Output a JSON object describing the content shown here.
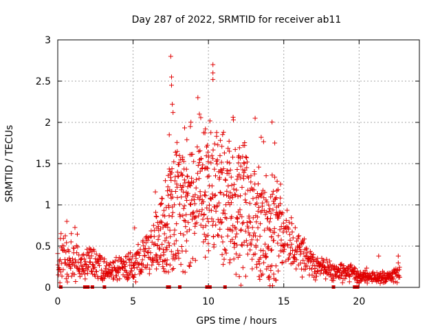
{
  "chart_data": {
    "type": "scatter",
    "title": "Day 287 of 2022, SRMTID for receiver ab11",
    "xlabel": "GPS time / hours",
    "ylabel": "SRMTID / TECUs",
    "xlim": [
      0,
      24
    ],
    "ylim": [
      0,
      3
    ],
    "xticks": [
      0,
      5,
      10,
      15,
      20
    ],
    "yticks": [
      0,
      0.5,
      1,
      1.5,
      2,
      2.5,
      3
    ],
    "grid": true,
    "marker": "+",
    "color": "#e00000",
    "envelope": [
      [
        0.0,
        0.3,
        0.35
      ],
      [
        0.5,
        0.38,
        0.3
      ],
      [
        1.0,
        0.36,
        0.25
      ],
      [
        1.5,
        0.25,
        0.12
      ],
      [
        2.0,
        0.32,
        0.18
      ],
      [
        2.5,
        0.28,
        0.18
      ],
      [
        3.0,
        0.24,
        0.14
      ],
      [
        3.5,
        0.22,
        0.12
      ],
      [
        4.0,
        0.24,
        0.16
      ],
      [
        4.5,
        0.24,
        0.18
      ],
      [
        5.0,
        0.28,
        0.18
      ],
      [
        5.5,
        0.34,
        0.2
      ],
      [
        6.0,
        0.42,
        0.24
      ],
      [
        6.5,
        0.52,
        0.32
      ],
      [
        7.0,
        0.68,
        0.45
      ],
      [
        7.5,
        0.9,
        0.62
      ],
      [
        8.0,
        1.0,
        0.7
      ],
      [
        8.5,
        1.0,
        0.7
      ],
      [
        9.0,
        1.1,
        0.7
      ],
      [
        9.5,
        1.25,
        0.7
      ],
      [
        10.0,
        1.15,
        0.75
      ],
      [
        10.5,
        1.05,
        0.75
      ],
      [
        11.0,
        0.95,
        0.7
      ],
      [
        11.5,
        0.95,
        0.7
      ],
      [
        12.0,
        0.9,
        0.7
      ],
      [
        12.5,
        0.9,
        0.7
      ],
      [
        13.0,
        0.85,
        0.6
      ],
      [
        13.5,
        0.8,
        0.6
      ],
      [
        14.0,
        0.6,
        0.55
      ],
      [
        14.5,
        0.85,
        0.7
      ],
      [
        15.0,
        0.6,
        0.3
      ],
      [
        15.5,
        0.58,
        0.3
      ],
      [
        16.0,
        0.45,
        0.25
      ],
      [
        16.5,
        0.35,
        0.2
      ],
      [
        17.0,
        0.28,
        0.15
      ],
      [
        17.5,
        0.24,
        0.12
      ],
      [
        18.0,
        0.2,
        0.12
      ],
      [
        18.5,
        0.18,
        0.1
      ],
      [
        19.0,
        0.18,
        0.1
      ],
      [
        19.5,
        0.2,
        0.12
      ],
      [
        20.0,
        0.12,
        0.06
      ],
      [
        20.5,
        0.12,
        0.06
      ],
      [
        21.0,
        0.12,
        0.06
      ],
      [
        21.5,
        0.12,
        0.06
      ],
      [
        22.0,
        0.12,
        0.06
      ],
      [
        22.5,
        0.18,
        0.1
      ]
    ],
    "sample_interval_hours": 0.02,
    "x_range": [
      0.0,
      22.7
    ],
    "peaks": [
      {
        "x": 7.5,
        "y": 2.8
      },
      {
        "x": 7.55,
        "y": 2.55
      },
      {
        "x": 7.55,
        "y": 2.45
      },
      {
        "x": 7.6,
        "y": 2.22
      },
      {
        "x": 7.65,
        "y": 2.12
      },
      {
        "x": 10.3,
        "y": 2.7
      },
      {
        "x": 10.3,
        "y": 2.6
      },
      {
        "x": 10.3,
        "y": 2.52
      },
      {
        "x": 9.3,
        "y": 2.3
      },
      {
        "x": 9.4,
        "y": 2.1
      },
      {
        "x": 13.1,
        "y": 2.05
      },
      {
        "x": 8.8,
        "y": 1.95
      },
      {
        "x": 9.8,
        "y": 1.92
      },
      {
        "x": 11.0,
        "y": 1.88
      },
      {
        "x": 13.5,
        "y": 1.82
      },
      {
        "x": 14.4,
        "y": 1.75
      },
      {
        "x": 7.4,
        "y": 1.85
      },
      {
        "x": 12.4,
        "y": 1.72
      },
      {
        "x": 0.6,
        "y": 0.8
      },
      {
        "x": 5.1,
        "y": 0.72
      },
      {
        "x": 21.3,
        "y": 0.38
      },
      {
        "x": 22.6,
        "y": 0.38
      }
    ],
    "zero_markers": [
      0.2,
      1.8,
      2.0,
      2.3,
      3.1,
      7.3,
      7.4,
      8.1,
      9.9,
      10.0,
      10.1,
      11.1,
      18.3,
      19.7,
      19.9
    ]
  }
}
